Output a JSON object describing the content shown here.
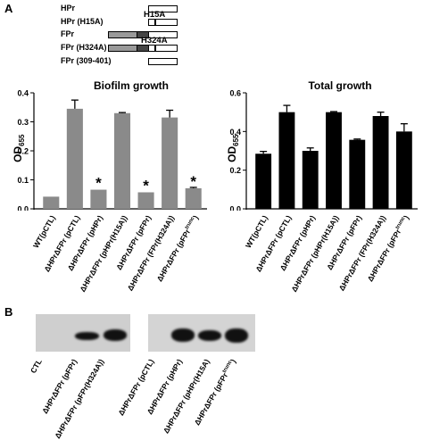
{
  "panel_a": {
    "label": "A",
    "constructs": [
      {
        "name": "HPr",
        "mutation": ""
      },
      {
        "name": "HPr (H15A)",
        "mutation": "H15A"
      },
      {
        "name": "FPr",
        "mutation": ""
      },
      {
        "name": "FPr (H324A)",
        "mutation": "H324A"
      },
      {
        "name": "FPr (309-401)",
        "mutation": ""
      }
    ]
  },
  "panel_b": {
    "label": "B",
    "blot1_lanes": [
      "CTL",
      "ΔHPrΔFPr (pFPr)",
      "ΔHPrΔFPr (pFPr(H324A))"
    ],
    "blot2_lanes": [
      "ΔHPrΔFPr (pCTL)",
      "ΔHPrΔFPr (pHPr)",
      "ΔHPrΔFPr (pHPr(H15A)",
      "ΔHPrΔFPr (pFPr^trunc)"
    ]
  },
  "chart_data": [
    {
      "type": "bar",
      "title": "Biofilm growth",
      "ylabel": "OD 655",
      "ylim": [
        0,
        0.4
      ],
      "yticks": [
        "0.0",
        "0.1",
        "0.2",
        "0.3",
        "0.4"
      ],
      "categories": [
        "WT(pCTL)",
        "ΔHPrΔFPr (pCTL)",
        "ΔHPrΔFPr (pHPr)",
        "ΔHPrΔFPr (pHPr(H15A))",
        "ΔHPrΔFPr (pFPr)",
        "ΔHPrΔFPr (FPr(H324A))",
        "ΔHPrΔFPr (pFPr^trunc)"
      ],
      "values": [
        0.042,
        0.345,
        0.066,
        0.33,
        0.057,
        0.315,
        0.071
      ],
      "errors": [
        0.0,
        0.03,
        0.0,
        0.002,
        0.0,
        0.025,
        0.003
      ],
      "significant": [
        false,
        false,
        true,
        false,
        true,
        false,
        true
      ],
      "marker": "*",
      "bar_color": "#8a8a8a"
    },
    {
      "type": "bar",
      "title": "Total growth",
      "ylabel": "OD 655",
      "ylim": [
        0,
        0.6
      ],
      "yticks": [
        "0.0",
        "0.2",
        "0.4",
        "0.6"
      ],
      "categories": [
        "WT(pCTL)",
        "ΔHPrΔFPr (pCTL)",
        "ΔHPrΔFPr (pHPr)",
        "ΔHPrΔFPr (pHPr(H15A))",
        "ΔHPrΔFPr (pFPr)",
        "ΔHPrΔFPr (FPr(H324A))",
        "ΔHPrΔFPr (pFPr^trunc)"
      ],
      "values": [
        0.285,
        0.5,
        0.3,
        0.5,
        0.357,
        0.48,
        0.4
      ],
      "errors": [
        0.012,
        0.035,
        0.015,
        0.003,
        0.004,
        0.02,
        0.04
      ],
      "significant": [
        false,
        false,
        false,
        false,
        false,
        false,
        false
      ],
      "marker": "",
      "bar_color": "#000000"
    }
  ]
}
